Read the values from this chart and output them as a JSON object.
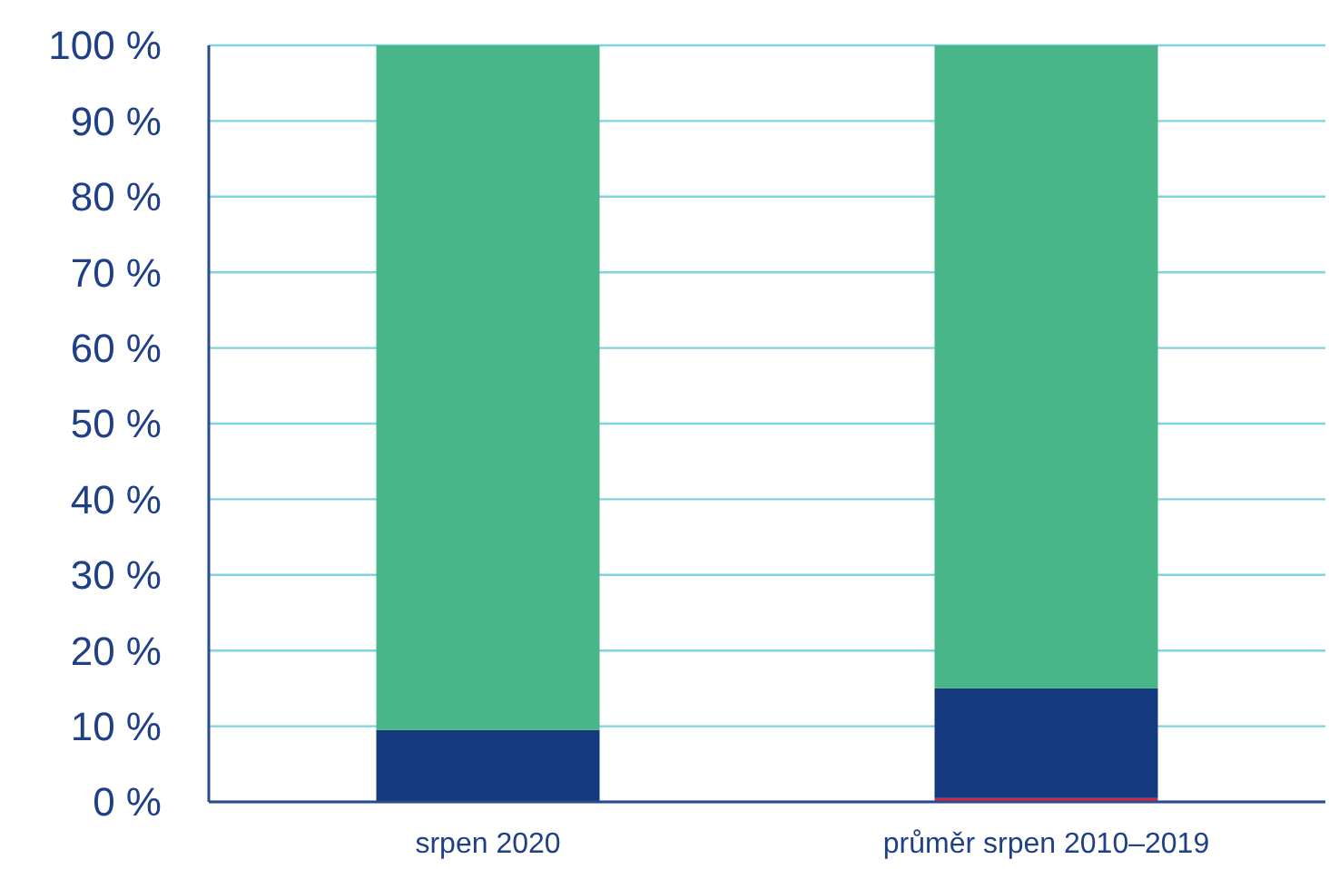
{
  "chart_data": {
    "type": "bar",
    "stacked": true,
    "categories": [
      "srpen 2020",
      "průměr srpen 2010–2019"
    ],
    "series": [
      {
        "color": "#d7263d",
        "values": [
          0,
          0.5
        ]
      },
      {
        "color": "#15397f",
        "values": [
          9.5,
          14.5
        ]
      },
      {
        "color": "#48b688",
        "values": [
          90.5,
          85
        ]
      }
    ],
    "ylim": [
      0,
      100
    ],
    "yticks": [
      {
        "value": 0,
        "label": "0 %"
      },
      {
        "value": 10,
        "label": "10 %"
      },
      {
        "value": 20,
        "label": "20 %"
      },
      {
        "value": 30,
        "label": "30 %"
      },
      {
        "value": 40,
        "label": "40 %"
      },
      {
        "value": 50,
        "label": "50 %"
      },
      {
        "value": 60,
        "label": "60 %"
      },
      {
        "value": 70,
        "label": "70 %"
      },
      {
        "value": 80,
        "label": "80 %"
      },
      {
        "value": 90,
        "label": "90 %"
      },
      {
        "value": 100,
        "label": "100 %"
      }
    ],
    "grid": "y"
  }
}
